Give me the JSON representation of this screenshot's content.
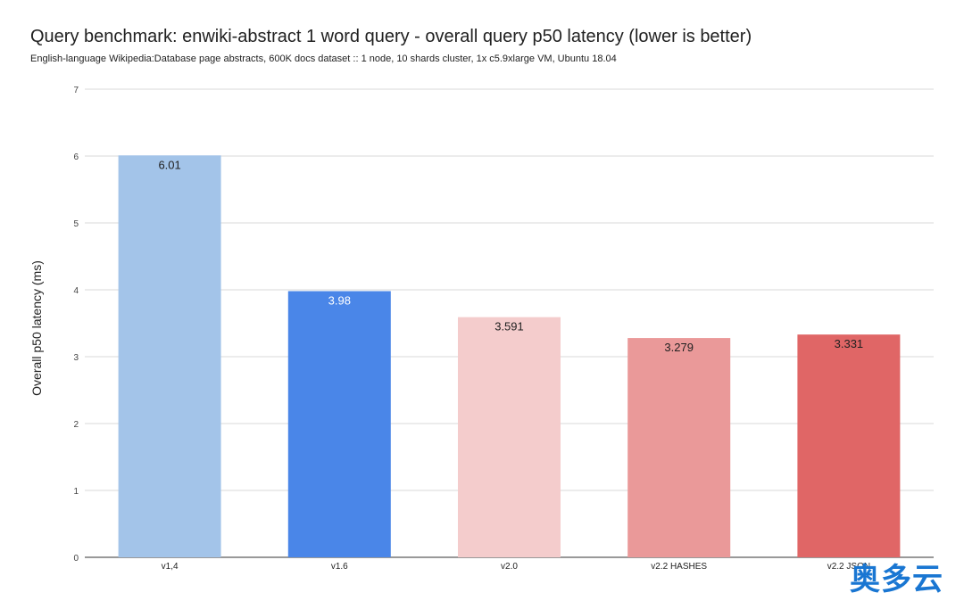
{
  "title": "Query benchmark: enwiki-abstract 1 word query - overall query p50 latency (lower is better)",
  "subtitle": "English-language Wikipedia:Database page abstracts, 600K docs dataset :: 1 node, 10 shards cluster, 1x c5.9xlarge VM, Ubuntu 18.04",
  "watermark": "奥多云",
  "chart_data": {
    "type": "bar",
    "title": "Query benchmark: enwiki-abstract 1 word query - overall query p50 latency (lower is better)",
    "subtitle": "English-language Wikipedia:Database page abstracts, 600K docs dataset :: 1 node, 10 shards cluster, 1x c5.9xlarge VM, Ubuntu 18.04",
    "xlabel": "",
    "ylabel": "Overall p50 latency (ms)",
    "ylim": [
      0,
      7
    ],
    "yticks": [
      0,
      1,
      2,
      3,
      4,
      5,
      6,
      7
    ],
    "grid": true,
    "categories": [
      "v1,4",
      "v1.6",
      "v2.0",
      "v2.2 HASHES",
      "v2.2 JSON"
    ],
    "values": [
      6.01,
      3.98,
      3.591,
      3.279,
      3.331
    ],
    "value_labels": [
      "6.01",
      "3.98",
      "3.591",
      "3.279",
      "3.331"
    ],
    "bar_colors": [
      "#a3c4e9",
      "#4a86e8",
      "#f4cccc",
      "#ea9999",
      "#e06666"
    ],
    "label_colors": [
      "#212121",
      "#ffffff",
      "#212121",
      "#212121",
      "#212121"
    ]
  }
}
